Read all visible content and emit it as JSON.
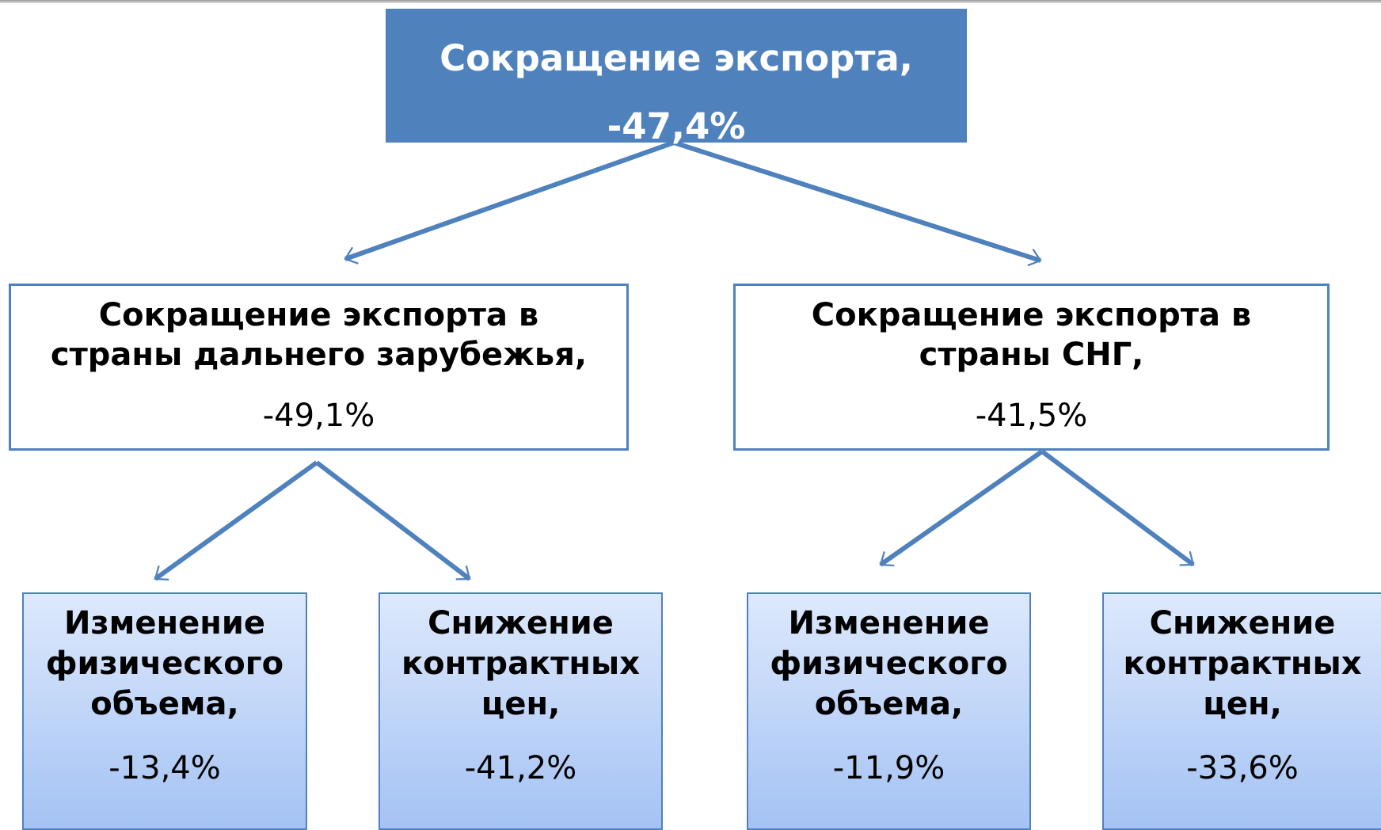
{
  "nodes": [
    {
      "title": [
        "Сокращение экспорта,"
      ],
      "value": "-47,4%"
    },
    {
      "title": [
        "Сокращение экспорта в",
        "страны дальнего зарубежья,"
      ],
      "value": "-49,1%"
    },
    {
      "title": [
        "Сокращение экспорта в",
        "страны СНГ,"
      ],
      "value": "-41,5%"
    },
    {
      "title": [
        "Изменение",
        "физического",
        "объема,"
      ],
      "value": "-13,4%"
    },
    {
      "title": [
        "Снижение",
        "контрактных",
        "цен,"
      ],
      "value": "-41,2%"
    },
    {
      "title": [
        "Изменение",
        "физического",
        "объема,"
      ],
      "value": "-11,9%"
    },
    {
      "title": [
        "Снижение",
        "контрактных",
        "цен,"
      ],
      "value": "-33,6%"
    }
  ]
}
